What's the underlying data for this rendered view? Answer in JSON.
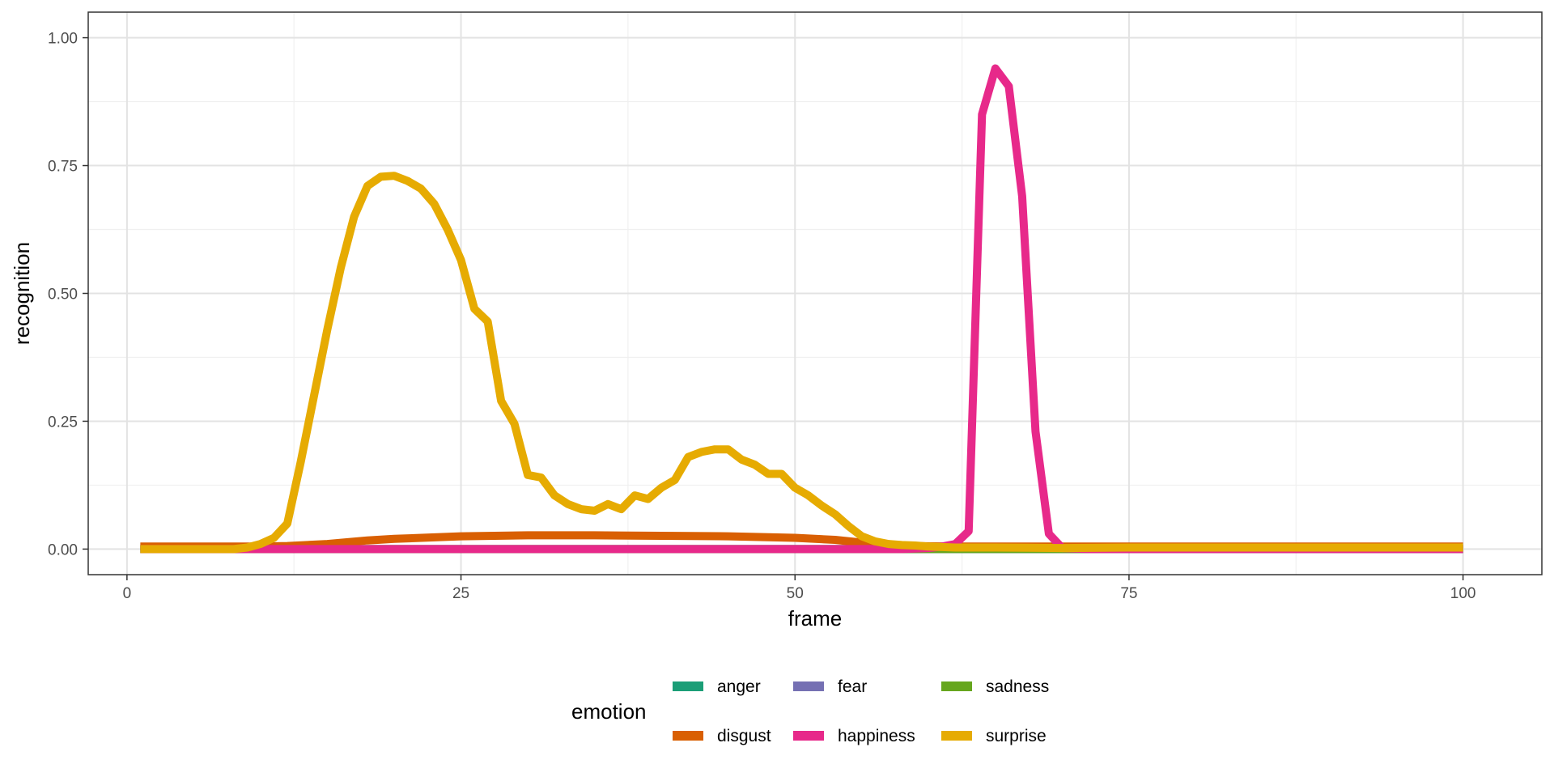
{
  "chart_data": {
    "type": "line",
    "xlabel": "frame",
    "ylabel": "recognition",
    "xlim": [
      -2.9,
      105.9
    ],
    "ylim": [
      -0.05,
      1.05
    ],
    "xticks": [
      0,
      25,
      50,
      75,
      100
    ],
    "xtick_labels": [
      "0",
      "25",
      "50",
      "75",
      "100"
    ],
    "yticks": [
      0,
      0.25,
      0.5,
      0.75,
      1
    ],
    "ytick_labels": [
      "0.00",
      "0.25",
      "0.50",
      "0.75",
      "1.00"
    ],
    "grid": true,
    "legend": {
      "title": "emotion",
      "position": "bottom",
      "entries": [
        "anger",
        "fear",
        "sadness",
        "disgust",
        "happiness",
        "surprise"
      ]
    },
    "series": [
      {
        "name": "anger",
        "color": "#1B9E77",
        "x": [
          1,
          100
        ],
        "y": [
          0.0,
          0.0
        ]
      },
      {
        "name": "fear",
        "color": "#7570B3",
        "x": [
          1,
          100
        ],
        "y": [
          0.0,
          0.0
        ]
      },
      {
        "name": "sadness",
        "color": "#66A61E",
        "x": [
          1,
          100
        ],
        "y": [
          0.0,
          0.0
        ]
      },
      {
        "name": "disgust",
        "color": "#D95F02",
        "x": [
          1,
          5,
          10,
          12,
          15,
          18,
          20,
          25,
          30,
          35,
          40,
          45,
          50,
          53,
          56,
          58,
          62,
          70,
          75,
          80,
          100
        ],
        "y": [
          0.005,
          0.005,
          0.005,
          0.006,
          0.01,
          0.017,
          0.02,
          0.025,
          0.027,
          0.027,
          0.026,
          0.025,
          0.022,
          0.018,
          0.01,
          0.006,
          0.005,
          0.005,
          0.005,
          0.005,
          0.005
        ]
      },
      {
        "name": "happiness",
        "color": "#E7298A",
        "x": [
          1,
          58,
          60,
          61,
          62,
          63,
          64,
          65,
          66,
          67,
          68,
          69,
          70,
          72,
          100
        ],
        "y": [
          0.0,
          0.0,
          0.002,
          0.005,
          0.01,
          0.035,
          0.85,
          0.94,
          0.905,
          0.69,
          0.23,
          0.03,
          0.002,
          0.0,
          0.0
        ]
      },
      {
        "name": "surprise",
        "color": "#E6AB02",
        "x": [
          1,
          2,
          3,
          4,
          5,
          6,
          7,
          8,
          9,
          10,
          11,
          12,
          13,
          14,
          15,
          16,
          17,
          18,
          19,
          20,
          21,
          22,
          23,
          24,
          25,
          26,
          27,
          28,
          29,
          30,
          31,
          32,
          33,
          34,
          35,
          36,
          37,
          38,
          39,
          40,
          41,
          42,
          43,
          44,
          45,
          46,
          47,
          48,
          49,
          50,
          51,
          52,
          53,
          54,
          55,
          56,
          57,
          58,
          59,
          60,
          62,
          65,
          70,
          75,
          80,
          90,
          100
        ],
        "y": [
          0.0,
          0.0,
          0.0,
          0.0,
          0.0,
          0.0,
          0.0,
          0.0,
          0.003,
          0.01,
          0.022,
          0.05,
          0.17,
          0.3,
          0.43,
          0.55,
          0.65,
          0.71,
          0.728,
          0.73,
          0.72,
          0.705,
          0.675,
          0.625,
          0.565,
          0.47,
          0.445,
          0.29,
          0.245,
          0.145,
          0.14,
          0.105,
          0.088,
          0.078,
          0.075,
          0.088,
          0.078,
          0.105,
          0.098,
          0.12,
          0.135,
          0.18,
          0.19,
          0.195,
          0.195,
          0.175,
          0.165,
          0.147,
          0.147,
          0.12,
          0.105,
          0.085,
          0.068,
          0.045,
          0.025,
          0.015,
          0.01,
          0.008,
          0.007,
          0.005,
          0.003,
          0.003,
          0.002,
          0.003,
          0.003,
          0.003,
          0.003
        ]
      }
    ]
  }
}
